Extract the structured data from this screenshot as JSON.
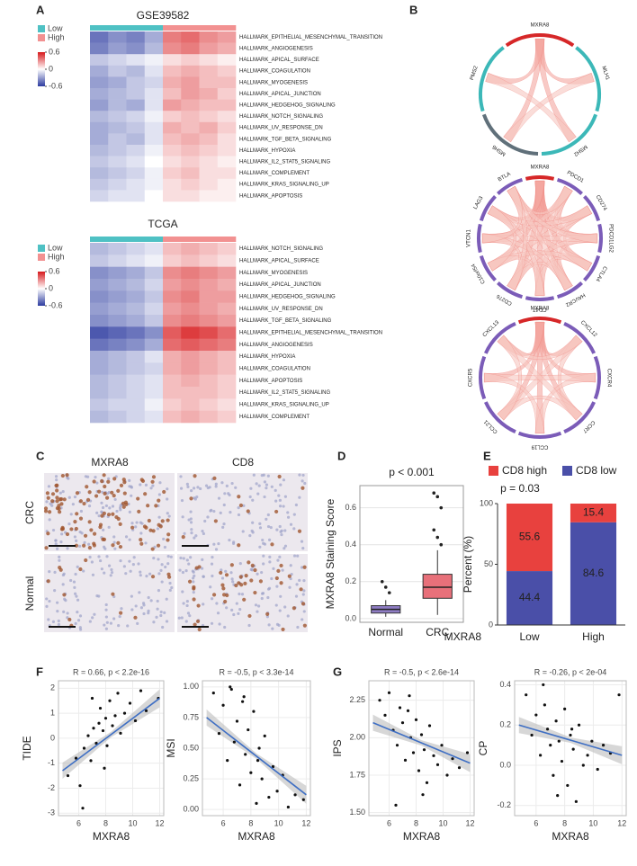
{
  "panel_labels": [
    "A",
    "B",
    "C",
    "D",
    "E",
    "F",
    "G"
  ],
  "chart_data": [
    {
      "type": "heatmap",
      "title": "GSE39582",
      "groups": [
        {
          "name": "Low",
          "color": "#4fc1c4"
        },
        {
          "name": "High",
          "color": "#f29191"
        }
      ],
      "clim": [
        -0.6,
        0.6
      ],
      "cticks": [
        0.6,
        0,
        -0.6
      ],
      "rows": [
        "HALLMARK_EPITHELIAL_MESENCHYMAL_TRANSITION",
        "HALLMARK_ANGIOGENESIS",
        "HALLMARK_APICAL_SURFACE",
        "HALLMARK_COAGULATION",
        "HALLMARK_MYOGENESIS",
        "HALLMARK_APICAL_JUNCTION",
        "HALLMARK_HEDGEHOG_SIGNALING",
        "HALLMARK_NOTCH_SIGNALING",
        "HALLMARK_UV_RESPONSE_DN",
        "HALLMARK_TGF_BETA_SIGNALING",
        "HALLMARK_HYPOXIA",
        "HALLMARK_IL2_STAT5_SIGNALING",
        "HALLMARK_COMPLEMENT",
        "HALLMARK_KRAS_SIGNALING_UP",
        "HALLMARK_APOPTOSIS"
      ],
      "values": [
        [
          -0.5,
          -0.4,
          -0.45,
          -0.3,
          0.4,
          0.45,
          0.35,
          0.3
        ],
        [
          -0.45,
          -0.35,
          -0.4,
          -0.25,
          0.35,
          0.4,
          0.3,
          0.25
        ],
        [
          -0.2,
          -0.15,
          -0.1,
          -0.05,
          0.1,
          0.15,
          0.1,
          0.05
        ],
        [
          -0.3,
          -0.2,
          -0.25,
          -0.1,
          0.2,
          0.25,
          0.2,
          0.15
        ],
        [
          -0.35,
          -0.3,
          -0.2,
          -0.15,
          0.25,
          0.3,
          0.2,
          0.2
        ],
        [
          -0.3,
          -0.25,
          -0.2,
          -0.1,
          0.2,
          0.3,
          0.25,
          0.15
        ],
        [
          -0.35,
          -0.25,
          -0.3,
          -0.1,
          0.3,
          0.25,
          0.2,
          0.2
        ],
        [
          -0.25,
          -0.2,
          -0.15,
          -0.05,
          0.15,
          0.2,
          0.15,
          0.1
        ],
        [
          -0.3,
          -0.25,
          -0.2,
          -0.1,
          0.25,
          0.2,
          0.25,
          0.15
        ],
        [
          -0.3,
          -0.2,
          -0.25,
          -0.1,
          0.2,
          0.25,
          0.2,
          0.1
        ],
        [
          -0.25,
          -0.2,
          -0.15,
          -0.05,
          0.15,
          0.2,
          0.15,
          0.1
        ],
        [
          -0.2,
          -0.15,
          -0.1,
          0.0,
          0.1,
          0.15,
          0.1,
          0.05
        ],
        [
          -0.25,
          -0.2,
          -0.15,
          -0.05,
          0.15,
          0.2,
          0.1,
          0.1
        ],
        [
          -0.2,
          -0.15,
          -0.1,
          -0.05,
          0.1,
          0.15,
          0.1,
          0.05
        ],
        [
          -0.15,
          -0.1,
          -0.1,
          0.0,
          0.1,
          0.1,
          0.05,
          0.05
        ]
      ]
    },
    {
      "type": "heatmap",
      "title": "TCGA",
      "groups": [
        {
          "name": "Low",
          "color": "#4fc1c4"
        },
        {
          "name": "High",
          "color": "#f29191"
        }
      ],
      "clim": [
        -0.6,
        0.6
      ],
      "cticks": [
        0.6,
        0,
        -0.6
      ],
      "rows": [
        "HALLMARK_NOTCH_SIGNALING",
        "HALLMARK_APICAL_SURFACE",
        "HALLMARK_MYOGENESIS",
        "HALLMARK_APICAL_JUNCTION",
        "HALLMARK_HEDGEHOG_SIGNALING",
        "HALLMARK_UV_RESPONSE_DN",
        "HALLMARK_TGF_BETA_SIGNALING",
        "HALLMARK_EPITHELIAL_MESENCHYMAL_TRANSITION",
        "HALLMARK_ANGIOGENESIS",
        "HALLMARK_HYPOXIA",
        "HALLMARK_COAGULATION",
        "HALLMARK_APOPTOSIS",
        "HALLMARK_IL2_STAT5_SIGNALING",
        "HALLMARK_KRAS_SIGNALING_UP",
        "HALLMARK_COMPLEMENT"
      ],
      "values": [
        [
          -0.25,
          -0.2,
          -0.15,
          -0.1,
          0.2,
          0.25,
          0.2,
          0.15
        ],
        [
          -0.2,
          -0.15,
          -0.1,
          -0.05,
          0.15,
          0.2,
          0.15,
          0.1
        ],
        [
          -0.4,
          -0.35,
          -0.3,
          -0.2,
          0.35,
          0.4,
          0.35,
          0.3
        ],
        [
          -0.35,
          -0.3,
          -0.25,
          -0.15,
          0.3,
          0.35,
          0.3,
          0.25
        ],
        [
          -0.4,
          -0.35,
          -0.3,
          -0.2,
          0.35,
          0.4,
          0.3,
          0.3
        ],
        [
          -0.35,
          -0.3,
          -0.25,
          -0.15,
          0.3,
          0.35,
          0.3,
          0.25
        ],
        [
          -0.4,
          -0.35,
          -0.3,
          -0.2,
          0.35,
          0.4,
          0.35,
          0.3
        ],
        [
          -0.6,
          -0.55,
          -0.5,
          -0.4,
          0.5,
          0.6,
          0.55,
          0.45
        ],
        [
          -0.5,
          -0.45,
          -0.4,
          -0.3,
          0.45,
          0.5,
          0.45,
          0.4
        ],
        [
          -0.3,
          -0.25,
          -0.2,
          -0.1,
          0.25,
          0.3,
          0.25,
          0.2
        ],
        [
          -0.3,
          -0.25,
          -0.2,
          -0.15,
          0.25,
          0.3,
          0.25,
          0.2
        ],
        [
          -0.25,
          -0.2,
          -0.15,
          -0.1,
          0.2,
          0.25,
          0.2,
          0.15
        ],
        [
          -0.25,
          -0.2,
          -0.15,
          -0.1,
          0.2,
          0.2,
          0.2,
          0.15
        ],
        [
          -0.2,
          -0.15,
          -0.15,
          -0.05,
          0.15,
          0.2,
          0.15,
          0.1
        ],
        [
          -0.25,
          -0.2,
          -0.15,
          -0.1,
          0.2,
          0.25,
          0.2,
          0.15
        ]
      ]
    },
    {
      "type": "chord",
      "nodes": [
        {
          "label": "MXRA8",
          "color": "#d62728"
        },
        {
          "label": "MLH1",
          "color": "#3cb8b8"
        },
        {
          "label": "MSH2",
          "color": "#3cb8b8"
        },
        {
          "label": "MSH6",
          "color": "#60707a"
        },
        {
          "label": "PMS2",
          "color": "#3cb8b8"
        }
      ]
    },
    {
      "type": "chord",
      "nodes": [
        {
          "label": "MXRA8",
          "color": "#d62728"
        },
        {
          "label": "PDCD1",
          "color": "#7b5cb8"
        },
        {
          "label": "CD274",
          "color": "#7b5cb8"
        },
        {
          "label": "PDCD1LG2",
          "color": "#7b5cb8"
        },
        {
          "label": "CTLA4",
          "color": "#7b5cb8"
        },
        {
          "label": "HAVCR2",
          "color": "#7b5cb8"
        },
        {
          "label": "CD47",
          "color": "#7b5cb8"
        },
        {
          "label": "CD276",
          "color": "#7b5cb8"
        },
        {
          "label": "C10orf54",
          "color": "#7b5cb8"
        },
        {
          "label": "VTCN1",
          "color": "#7b5cb8"
        },
        {
          "label": "LAG3",
          "color": "#7b5cb8"
        },
        {
          "label": "BTLA",
          "color": "#7b5cb8"
        }
      ]
    },
    {
      "type": "chord",
      "nodes": [
        {
          "label": "MXRA8",
          "color": "#d62728"
        },
        {
          "label": "CXCL12",
          "color": "#7b5cb8"
        },
        {
          "label": "CXCR4",
          "color": "#7b5cb8"
        },
        {
          "label": "CCR7",
          "color": "#7b5cb8"
        },
        {
          "label": "CCL19",
          "color": "#7b5cb8"
        },
        {
          "label": "CCL21",
          "color": "#7b5cb8"
        },
        {
          "label": "CXCR5",
          "color": "#7b5cb8"
        },
        {
          "label": "CXCL13",
          "color": "#7b5cb8"
        }
      ]
    },
    {
      "type": "image-grid",
      "columns": [
        "MXRA8",
        "CD8"
      ],
      "rows": [
        "CRC",
        "Normal"
      ]
    },
    {
      "type": "box",
      "title": "p < 0.001",
      "ylabel": "MXRA8 Staining Score",
      "categories": [
        "Normal",
        "CRC"
      ],
      "colors": [
        "#8e7cc3",
        "#e8707a"
      ],
      "boxes": [
        {
          "min": 0.01,
          "q1": 0.03,
          "median": 0.05,
          "q3": 0.07,
          "max": 0.1
        },
        {
          "min": 0.02,
          "q1": 0.11,
          "median": 0.17,
          "q3": 0.24,
          "max": 0.37
        }
      ],
      "outliers": [
        [
          0.2,
          0.17,
          0.14
        ],
        [
          0.68,
          0.66,
          0.6,
          0.48,
          0.44,
          0.4
        ]
      ],
      "ylim": [
        -0.02,
        0.72
      ],
      "yticks": [
        {
          "value": 0,
          "label": "0.0"
        },
        {
          "value": 0.2,
          "label": "0.2"
        },
        {
          "value": 0.4,
          "label": "0.4"
        },
        {
          "value": 0.6,
          "label": "0.6"
        }
      ]
    },
    {
      "type": "stacked-bar",
      "title": "p = 0.03",
      "ylabel": "Percent (%)",
      "xlabel": "MXRA8",
      "categories": [
        "Low",
        "High"
      ],
      "series": [
        {
          "name": "CD8 high",
          "color": "#e8413e",
          "values": [
            55.6,
            15.4
          ]
        },
        {
          "name": "CD8 low",
          "color": "#4a4fa8",
          "values": [
            44.4,
            84.6
          ]
        }
      ],
      "ylim": [
        0,
        100
      ],
      "yticks": [
        0,
        50,
        100
      ]
    },
    {
      "type": "scatter",
      "title": "R = 0.66, p < 2.2e-16",
      "xlabel": "MXRA8",
      "ylabel": "TIDE",
      "x": [
        5.2,
        5.8,
        6.1,
        6.4,
        6.7,
        6.9,
        7.1,
        7.3,
        7.5,
        7.6,
        7.8,
        8.0,
        8.1,
        8.3,
        8.5,
        8.7,
        8.9,
        9.1,
        9.4,
        9.8,
        10.2,
        10.6,
        11.0,
        11.9,
        6.3,
        7.0,
        7.9
      ],
      "y": [
        -1.5,
        -0.8,
        -1.9,
        -0.4,
        0.1,
        -0.9,
        0.4,
        -0.2,
        0.6,
        1.2,
        0.3,
        0.8,
        -0.3,
        1.5,
        0.5,
        0.9,
        1.8,
        0.2,
        1.0,
        1.4,
        0.7,
        1.9,
        1.1,
        1.6,
        -2.8,
        1.6,
        -1.2
      ],
      "fit": {
        "x": [
          4.8,
          12
        ],
        "y": [
          -1.3,
          1.6
        ]
      },
      "xlim": [
        4.5,
        12.3
      ],
      "xticks": [
        6,
        8,
        10,
        12
      ],
      "ylim": [
        -3.1,
        2.3
      ],
      "yticks": [
        -3,
        -2,
        -1,
        0,
        1,
        2
      ]
    },
    {
      "type": "scatter",
      "title": "R = -0.5, p < 3.3e-14",
      "xlabel": "MXRA8",
      "ylabel": "MSI",
      "x": [
        5.3,
        5.7,
        6.0,
        6.3,
        6.6,
        6.8,
        7.0,
        7.2,
        7.4,
        7.6,
        7.8,
        8.0,
        8.2,
        8.4,
        8.6,
        8.8,
        9.0,
        9.3,
        9.6,
        9.9,
        10.3,
        10.7,
        11.2,
        11.8,
        6.5,
        7.5,
        8.5
      ],
      "y": [
        0.95,
        0.62,
        0.85,
        0.4,
        0.98,
        0.55,
        0.72,
        0.2,
        0.88,
        0.45,
        0.65,
        0.3,
        0.8,
        0.05,
        0.5,
        0.25,
        0.6,
        0.1,
        0.35,
        0.15,
        0.28,
        0.02,
        0.12,
        0.08,
        1.0,
        0.92,
        0.4
      ],
      "fit": {
        "x": [
          4.8,
          12
        ],
        "y": [
          0.75,
          0.12
        ]
      },
      "xlim": [
        4.5,
        12.3
      ],
      "xticks": [
        6,
        8,
        10,
        12
      ],
      "ylim": [
        -0.05,
        1.05
      ],
      "yticks": [
        {
          "value": 0,
          "label": "0.00"
        },
        {
          "value": 0.25,
          "label": "0.25"
        },
        {
          "value": 0.5,
          "label": "0.50"
        },
        {
          "value": 0.75,
          "label": "0.75"
        },
        {
          "value": 1,
          "label": "1.00"
        }
      ]
    },
    {
      "type": "scatter",
      "title": "R = -0.5, p < 2.6e-14",
      "xlabel": "MXRA8",
      "ylabel": "IPS",
      "x": [
        5.3,
        5.7,
        6.0,
        6.3,
        6.6,
        6.8,
        7.0,
        7.2,
        7.4,
        7.6,
        7.8,
        8.0,
        8.2,
        8.4,
        8.6,
        8.8,
        9.0,
        9.3,
        9.6,
        9.9,
        10.3,
        10.7,
        11.2,
        11.8,
        6.5,
        7.5,
        8.5
      ],
      "y": [
        2.25,
        2.15,
        2.3,
        2.05,
        1.95,
        2.2,
        2.1,
        1.85,
        2.18,
        2.0,
        1.9,
        2.12,
        1.78,
        2.02,
        1.92,
        1.7,
        2.08,
        1.88,
        1.82,
        1.95,
        1.75,
        1.86,
        1.8,
        1.9,
        1.55,
        2.28,
        1.62
      ],
      "fit": {
        "x": [
          4.8,
          12
        ],
        "y": [
          2.1,
          1.83
        ]
      },
      "xlim": [
        4.5,
        12.3
      ],
      "xticks": [
        6,
        8,
        10,
        12
      ],
      "ylim": [
        1.48,
        2.38
      ],
      "yticks": [
        {
          "value": 1.5,
          "label": "1.50"
        },
        {
          "value": 1.75,
          "label": "1.75"
        },
        {
          "value": 2,
          "label": "2.00"
        },
        {
          "value": 2.25,
          "label": "2.25"
        }
      ]
    },
    {
      "type": "scatter",
      "title": "R = -0.26, p < 2e-04",
      "xlabel": "MXRA8",
      "ylabel": "CP",
      "x": [
        5.3,
        5.7,
        6.0,
        6.3,
        6.6,
        6.8,
        7.0,
        7.2,
        7.4,
        7.6,
        7.8,
        8.0,
        8.2,
        8.4,
        8.6,
        8.8,
        9.0,
        9.3,
        9.6,
        9.9,
        10.3,
        10.7,
        11.2,
        11.8,
        6.5,
        7.5,
        8.5
      ],
      "y": [
        0.35,
        0.15,
        0.25,
        0.05,
        0.3,
        0.18,
        0.1,
        -0.05,
        0.22,
        0.12,
        0.02,
        0.28,
        -0.1,
        0.15,
        0.08,
        -0.18,
        0.2,
        0.0,
        0.05,
        0.12,
        -0.02,
        0.1,
        0.06,
        0.35,
        0.4,
        -0.15,
        0.18
      ],
      "fit": {
        "x": [
          4.8,
          12
        ],
        "y": [
          0.2,
          0.05
        ]
      },
      "xlim": [
        4.5,
        12.3
      ],
      "xticks": [
        6,
        8,
        10,
        12
      ],
      "ylim": [
        -0.25,
        0.42
      ],
      "yticks": [
        {
          "value": -0.2,
          "label": "-0.2"
        },
        {
          "value": 0,
          "label": "0.0"
        },
        {
          "value": 0.2,
          "label": "0.2"
        },
        {
          "value": 0.4,
          "label": "0.4"
        }
      ]
    }
  ]
}
